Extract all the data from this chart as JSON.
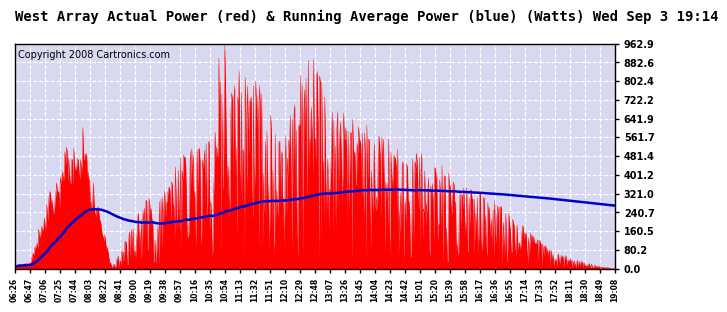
{
  "title": "West Array Actual Power (red) & Running Average Power (blue) (Watts) Wed Sep 3 19:14",
  "copyright": "Copyright 2008 Cartronics.com",
  "y_max": 962.9,
  "y_min": 0.0,
  "y_ticks": [
    0.0,
    80.2,
    160.5,
    240.7,
    321.0,
    401.2,
    481.4,
    561.7,
    641.9,
    722.2,
    802.4,
    882.6,
    962.9
  ],
  "x_tick_labels": [
    "06:26",
    "06:47",
    "07:06",
    "07:25",
    "07:44",
    "08:03",
    "08:22",
    "08:41",
    "09:00",
    "09:19",
    "09:38",
    "09:57",
    "10:16",
    "10:35",
    "10:54",
    "11:13",
    "11:32",
    "11:51",
    "12:10",
    "12:29",
    "12:48",
    "13:07",
    "13:26",
    "13:45",
    "14:04",
    "14:23",
    "14:42",
    "15:01",
    "15:20",
    "15:39",
    "15:58",
    "16:17",
    "16:36",
    "16:55",
    "17:14",
    "17:33",
    "17:52",
    "18:11",
    "18:30",
    "18:49",
    "19:08"
  ],
  "bg_color": "#ffffff",
  "plot_bg_color": "#d8d8f0",
  "grid_color": "#ffffff",
  "red_color": "#ff0000",
  "blue_color": "#0000cc",
  "title_color": "#000000",
  "title_fontsize": 10,
  "copyright_fontsize": 7
}
